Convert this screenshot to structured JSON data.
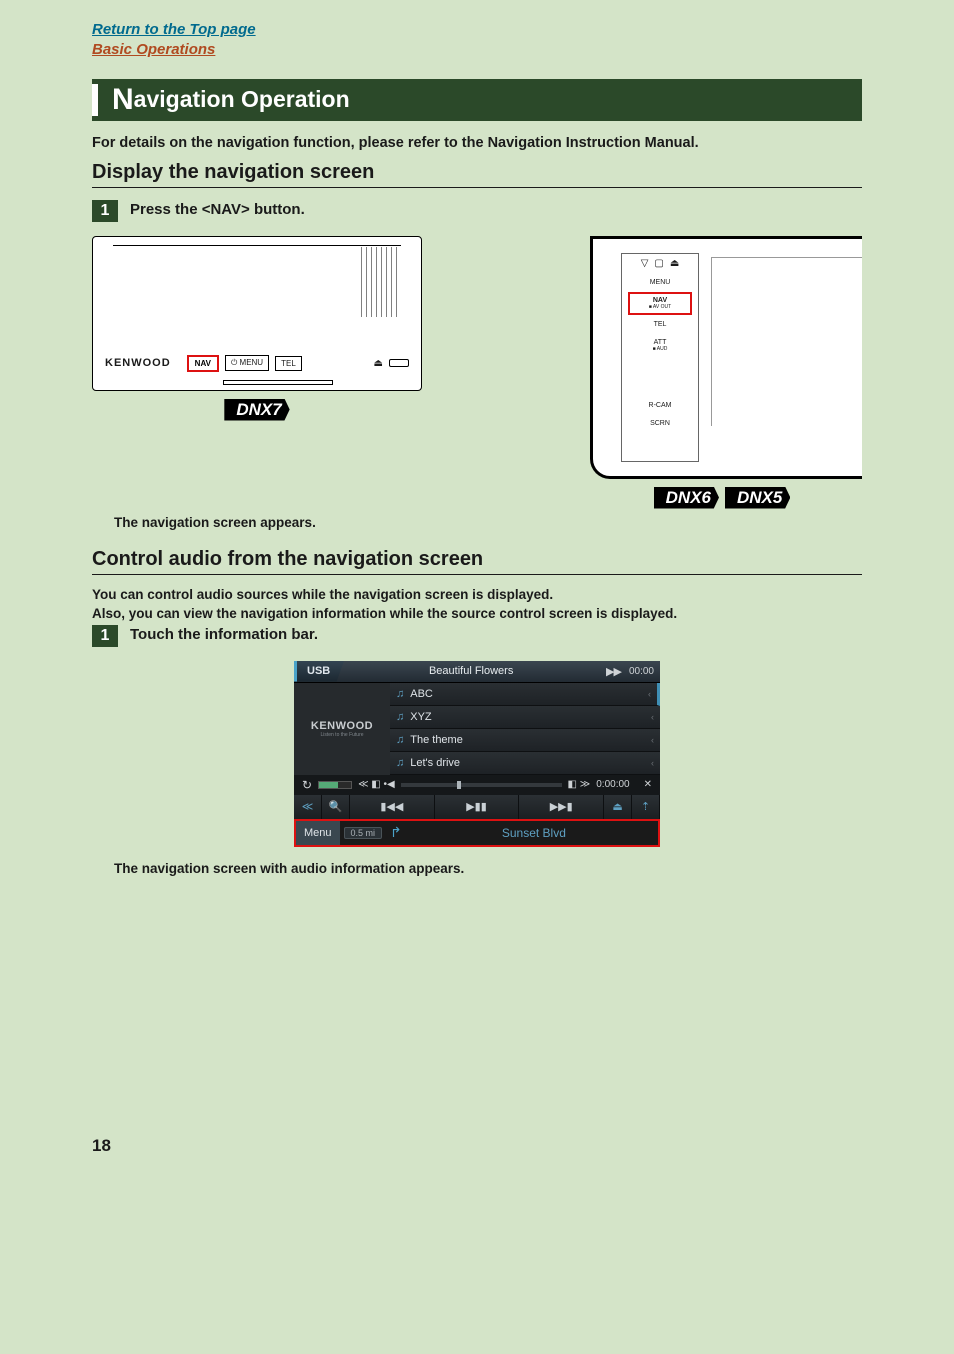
{
  "links": {
    "top": "Return to the Top page",
    "basic": "Basic Operations"
  },
  "title": {
    "big": "N",
    "rest": "avigation Operation"
  },
  "intro": "For details on the navigation function, please refer to the Navigation Instruction Manual.",
  "section1": {
    "heading": "Display the navigation screen",
    "step_no": "1",
    "step": "Press the <NAV> button.",
    "caption": "The navigation screen appears."
  },
  "devices": {
    "dnx7": {
      "brand": "KENWOOD",
      "buttons": [
        "NAV",
        "MENU",
        "TEL"
      ],
      "tag": "DNX7"
    },
    "dnx65": {
      "top_icons": [
        "▽",
        "▢",
        "⏏"
      ],
      "labels": [
        {
          "t": "MENU",
          "s": ""
        },
        {
          "t": "NAV",
          "s": "AV OUT",
          "nav": true
        },
        {
          "t": "TEL",
          "s": ""
        },
        {
          "t": "ATT",
          "s": "AUD"
        },
        {
          "t": "R-CAM",
          "s": ""
        },
        {
          "t": "SCRN",
          "s": ""
        }
      ],
      "tags": [
        "DNX6",
        "DNX5"
      ]
    }
  },
  "section2": {
    "heading": "Control audio from the navigation screen",
    "p1": "You can control audio sources while the navigation screen is displayed.",
    "p2": "Also, you can view the navigation information while the source control screen is displayed.",
    "step_no": "1",
    "step": "Touch the information bar.",
    "caption": "The navigation screen with audio information appears."
  },
  "hu": {
    "source": "USB",
    "title": "Beautiful Flowers",
    "ff": "▶▶",
    "clock": "00:00",
    "brand": "KENWOOD",
    "brand_sub": "Listen to the Future",
    "rows": [
      "ABC",
      "XYZ",
      "The theme",
      "Let's drive"
    ],
    "elapsed": "0:00:00",
    "shuffle": "✕",
    "menu": "Menu",
    "distance": "0.5 mi",
    "road": "Sunset Blvd",
    "ctrl": {
      "prev": "≪",
      "search": "🔍",
      "rew": "▮◀◀",
      "play": "▶▮▮",
      "fwd": "▶▶▮",
      "eject": "⏏",
      "up": "⇡"
    }
  },
  "page_no": "18",
  "colors": {
    "page_bg": "#d4e4c8",
    "title_bg": "#2b4929",
    "highlight": "#d11",
    "link_top": "#006a8e",
    "link_basic": "#b04a20"
  }
}
